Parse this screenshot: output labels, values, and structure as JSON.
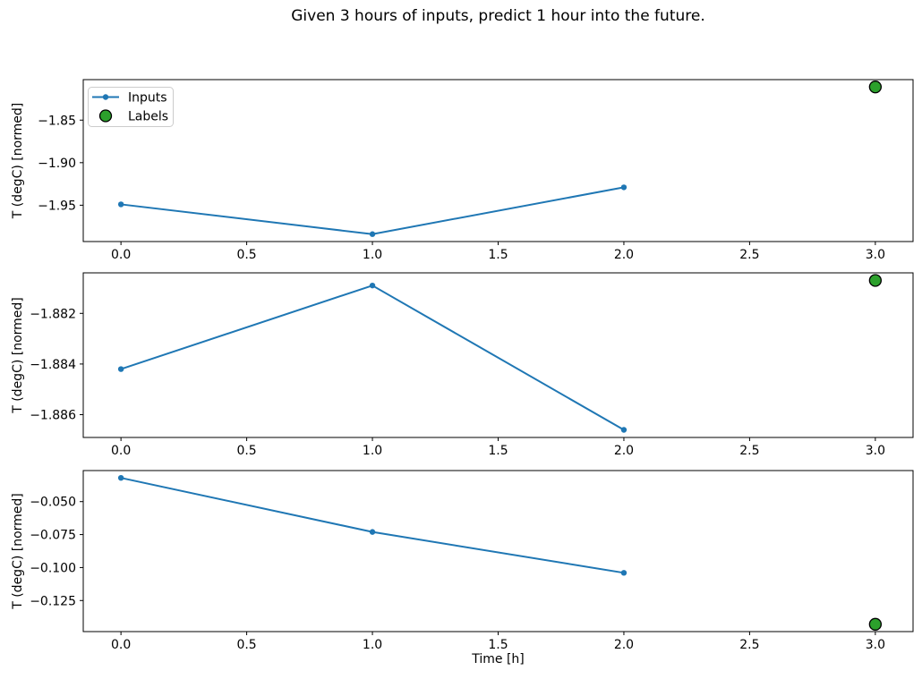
{
  "chart_data": {
    "type": "line",
    "title": "Given 3 hours of inputs, predict 1 hour into the future.",
    "xlabel": "Time [h]",
    "xlim": [
      -0.15,
      3.15
    ],
    "x_ticks": [
      {
        "value": 0.0,
        "label": "0.0"
      },
      {
        "value": 0.5,
        "label": "0.5"
      },
      {
        "value": 1.0,
        "label": "1.0"
      },
      {
        "value": 1.5,
        "label": "1.5"
      },
      {
        "value": 2.0,
        "label": "2.0"
      },
      {
        "value": 2.5,
        "label": "2.5"
      },
      {
        "value": 3.0,
        "label": "3.0"
      }
    ],
    "legend": {
      "position": "upper left",
      "entries": [
        {
          "label": "Inputs",
          "marker": "line-dot",
          "color": "#1f77b4"
        },
        {
          "label": "Labels",
          "marker": "circle",
          "color": "#2ca02c"
        }
      ]
    },
    "colors": {
      "inputs_line": "#1f77b4",
      "labels_fill": "#2ca02c",
      "labels_edge": "#000000",
      "axis": "#000000",
      "legend_border": "#cccccc"
    },
    "subplots": [
      {
        "ylabel": "T (degC) [normed]",
        "ylim": [
          -1.9927,
          -1.8024
        ],
        "y_ticks": [
          {
            "value": -1.85,
            "label": "−1.85"
          },
          {
            "value": -1.9,
            "label": "−1.90"
          },
          {
            "value": -1.95,
            "label": "−1.95"
          }
        ],
        "show_legend": true,
        "series": [
          {
            "name": "Inputs",
            "type": "line",
            "x": [
              0,
              1,
              2
            ],
            "y": [
              -1.949,
              -1.984,
              -1.929
            ]
          },
          {
            "name": "Labels",
            "type": "scatter",
            "x": [
              3
            ],
            "y": [
              -1.811
            ]
          }
        ]
      },
      {
        "ylabel": "T (degC) [normed]",
        "ylim": [
          -1.8869,
          -1.8804
        ],
        "y_ticks": [
          {
            "value": -1.882,
            "label": "−1.882"
          },
          {
            "value": -1.884,
            "label": "−1.884"
          },
          {
            "value": -1.886,
            "label": "−1.886"
          }
        ],
        "show_legend": false,
        "series": [
          {
            "name": "Inputs",
            "type": "line",
            "x": [
              0,
              1,
              2
            ],
            "y": [
              -1.8842,
              -1.8809,
              -1.8866
            ]
          },
          {
            "name": "Labels",
            "type": "scatter",
            "x": [
              3
            ],
            "y": [
              -1.8807
            ]
          }
        ]
      },
      {
        "ylabel": "T (degC) [normed]",
        "ylim": [
          -0.14855,
          -0.02645
        ],
        "y_ticks": [
          {
            "value": -0.05,
            "label": "−0.050"
          },
          {
            "value": -0.075,
            "label": "−0.075"
          },
          {
            "value": -0.1,
            "label": "−0.100"
          },
          {
            "value": -0.125,
            "label": "−0.125"
          }
        ],
        "show_legend": false,
        "series": [
          {
            "name": "Inputs",
            "type": "line",
            "x": [
              0,
              1,
              2
            ],
            "y": [
              -0.032,
              -0.073,
              -0.104
            ]
          },
          {
            "name": "Labels",
            "type": "scatter",
            "x": [
              3
            ],
            "y": [
              -0.143
            ]
          }
        ]
      }
    ]
  }
}
